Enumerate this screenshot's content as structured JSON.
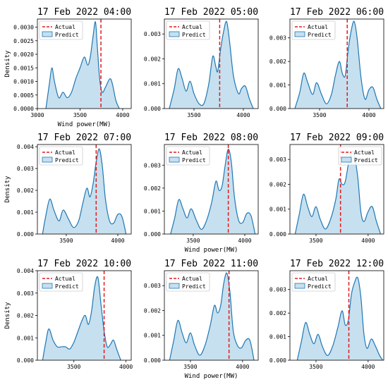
{
  "chart_data": [
    {
      "type": "area",
      "title": "17 Feb 2022 04:00",
      "xlabel": "Wind power(MW)",
      "ylabel": "Density",
      "xlim": [
        3000,
        4100
      ],
      "ylim": [
        0,
        0.0033
      ],
      "xticks": [
        3000,
        3500,
        4000
      ],
      "yticks": [
        0.0,
        0.0005,
        0.001,
        0.0015,
        0.002,
        0.0025,
        0.003
      ],
      "ytick_labels": [
        "0.0000",
        "0.0005",
        "0.0010",
        "0.0015",
        "0.0020",
        "0.0025",
        "0.0030"
      ],
      "actual": 3745,
      "series": [
        {
          "name": "Predict",
          "x": [
            3100,
            3140,
            3170,
            3200,
            3250,
            3300,
            3350,
            3400,
            3450,
            3500,
            3550,
            3590,
            3620,
            3650,
            3680,
            3700,
            3730,
            3760,
            3800,
            3850,
            3880,
            3920,
            3960
          ],
          "values": [
            0.0,
            0.0009,
            0.0015,
            0.001,
            0.0004,
            0.0006,
            0.0004,
            0.0006,
            0.0011,
            0.0015,
            0.0019,
            0.0016,
            0.0019,
            0.0026,
            0.0032,
            0.0024,
            0.0011,
            0.0006,
            0.0008,
            0.0011,
            0.0009,
            0.0003,
            0.0
          ]
        }
      ]
    },
    {
      "type": "area",
      "title": "17 Feb 2022 05:00",
      "xlabel": "",
      "ylabel": "",
      "xlim": [
        3200,
        4150
      ],
      "ylim": [
        0,
        0.0036
      ],
      "xticks": [
        3500,
        4000
      ],
      "yticks": [
        0.0,
        0.001,
        0.002,
        0.003
      ],
      "ytick_labels": [
        "0.000",
        "0.001",
        "0.002",
        "0.003"
      ],
      "actual": 3760,
      "series": [
        {
          "name": "Predict",
          "x": [
            3250,
            3300,
            3340,
            3380,
            3420,
            3460,
            3500,
            3550,
            3600,
            3650,
            3690,
            3720,
            3740,
            3770,
            3800,
            3830,
            3860,
            3900,
            3950,
            3980,
            4020,
            4060,
            4100
          ],
          "values": [
            0.0,
            0.0008,
            0.0016,
            0.0012,
            0.0007,
            0.0011,
            0.0006,
            0.0002,
            0.0002,
            0.001,
            0.0021,
            0.0017,
            0.0015,
            0.0024,
            0.0031,
            0.0035,
            0.0027,
            0.0013,
            0.0006,
            0.0008,
            0.0009,
            0.0004,
            0.0
          ]
        }
      ]
    },
    {
      "type": "area",
      "title": "17 Feb 2022 06:00",
      "xlabel": "",
      "ylabel": "",
      "xlim": [
        3200,
        4150
      ],
      "ylim": [
        0,
        0.0038
      ],
      "xticks": [
        3500,
        4000
      ],
      "yticks": [
        0.0,
        0.001,
        0.002,
        0.003
      ],
      "ytick_labels": [
        "0.000",
        "0.001",
        "0.002",
        "0.003"
      ],
      "actual": 3780,
      "series": [
        {
          "name": "Predict",
          "x": [
            3250,
            3300,
            3340,
            3380,
            3430,
            3470,
            3520,
            3570,
            3620,
            3660,
            3700,
            3730,
            3760,
            3790,
            3820,
            3850,
            3880,
            3920,
            3960,
            4000,
            4040,
            4080,
            4120
          ],
          "values": [
            0.0,
            0.0007,
            0.0015,
            0.0011,
            0.0006,
            0.0011,
            0.0006,
            0.0002,
            0.0006,
            0.0014,
            0.002,
            0.0015,
            0.0014,
            0.0025,
            0.0033,
            0.0037,
            0.003,
            0.0013,
            0.0004,
            0.0008,
            0.0009,
            0.0004,
            0.0
          ]
        }
      ]
    },
    {
      "type": "area",
      "title": "17 Feb 2022 07:00",
      "xlabel": "",
      "ylabel": "Density",
      "xlim": [
        3220,
        4130
      ],
      "ylim": [
        0,
        0.0041
      ],
      "xticks": [
        3500,
        4000
      ],
      "yticks": [
        0.0,
        0.001,
        0.002,
        0.003,
        0.004
      ],
      "ytick_labels": [
        "0.000",
        "0.001",
        "0.002",
        "0.003",
        "0.004"
      ],
      "actual": 3790,
      "series": [
        {
          "name": "Predict",
          "x": [
            3270,
            3300,
            3340,
            3380,
            3430,
            3470,
            3520,
            3570,
            3620,
            3660,
            3700,
            3730,
            3760,
            3790,
            3820,
            3850,
            3880,
            3920,
            3960,
            4000,
            4040,
            4080
          ],
          "values": [
            0.0,
            0.0008,
            0.0016,
            0.0011,
            0.0006,
            0.0011,
            0.0007,
            0.0003,
            0.0006,
            0.0014,
            0.0021,
            0.0017,
            0.0023,
            0.0033,
            0.0039,
            0.0031,
            0.0016,
            0.0006,
            0.0005,
            0.0009,
            0.0008,
            0.0
          ]
        }
      ]
    },
    {
      "type": "area",
      "title": "17 Feb 2022 08:00",
      "xlabel": "Wind power(MW)",
      "ylabel": "",
      "xlim": [
        3220,
        4130
      ],
      "ylim": [
        0,
        0.0039
      ],
      "xticks": [
        3500,
        4000
      ],
      "yticks": [
        0.0,
        0.001,
        0.002,
        0.003
      ],
      "ytick_labels": [
        "0.000",
        "0.001",
        "0.002",
        "0.003"
      ],
      "actual": 3840,
      "series": [
        {
          "name": "Predict",
          "x": [
            3280,
            3320,
            3360,
            3400,
            3440,
            3480,
            3530,
            3580,
            3630,
            3680,
            3720,
            3750,
            3780,
            3810,
            3840,
            3870,
            3900,
            3940,
            3980,
            4020,
            4060,
            4100
          ],
          "values": [
            0.0,
            0.0007,
            0.0015,
            0.0011,
            0.0007,
            0.0011,
            0.0006,
            0.0002,
            0.0006,
            0.0014,
            0.0023,
            0.0019,
            0.0021,
            0.003,
            0.0037,
            0.0031,
            0.0016,
            0.0006,
            0.0005,
            0.0009,
            0.0008,
            0.0
          ]
        }
      ]
    },
    {
      "type": "area",
      "title": "17 Feb 2022 09:00",
      "xlabel": "",
      "ylabel": "",
      "xlim": [
        3250,
        4150
      ],
      "ylim": [
        0,
        0.0036
      ],
      "xticks": [
        3500,
        4000
      ],
      "yticks": [
        0.0,
        0.001,
        0.002,
        0.003
      ],
      "ytick_labels": [
        "0.000",
        "0.001",
        "0.002",
        "0.003"
      ],
      "actual": 3735,
      "series": [
        {
          "name": "Predict",
          "x": [
            3300,
            3340,
            3380,
            3420,
            3460,
            3500,
            3540,
            3590,
            3640,
            3690,
            3720,
            3750,
            3780,
            3820,
            3860,
            3900,
            3930,
            3960,
            4000,
            4040,
            4080,
            4120
          ],
          "values": [
            0.0,
            0.0008,
            0.0016,
            0.0011,
            0.0007,
            0.0011,
            0.0006,
            0.0002,
            0.0006,
            0.0014,
            0.0022,
            0.002,
            0.0021,
            0.003,
            0.0033,
            0.0023,
            0.0009,
            0.0005,
            0.0009,
            0.0011,
            0.0005,
            0.0
          ]
        }
      ]
    },
    {
      "type": "area",
      "title": "17 Feb 2022 10:00",
      "xlabel": "",
      "ylabel": "Density",
      "xlim": [
        3150,
        4050
      ],
      "ylim": [
        0,
        0.004
      ],
      "xticks": [
        3500,
        4000
      ],
      "yticks": [
        0.0,
        0.001,
        0.002,
        0.003,
        0.004
      ],
      "ytick_labels": [
        "0.000",
        "0.001",
        "0.002",
        "0.003",
        "0.004"
      ],
      "actual": 3790,
      "series": [
        {
          "name": "Predict",
          "x": [
            3200,
            3230,
            3260,
            3300,
            3340,
            3380,
            3420,
            3460,
            3500,
            3540,
            3580,
            3610,
            3640,
            3670,
            3700,
            3730,
            3760,
            3790,
            3820,
            3850,
            3880,
            3910,
            3950
          ],
          "values": [
            0.0,
            0.0008,
            0.0014,
            0.0009,
            0.0006,
            0.0006,
            0.0006,
            0.0005,
            0.0008,
            0.0013,
            0.0018,
            0.002,
            0.0016,
            0.0022,
            0.0033,
            0.0037,
            0.0025,
            0.0013,
            0.0006,
            0.0007,
            0.0009,
            0.0005,
            0.0
          ]
        }
      ]
    },
    {
      "type": "area",
      "title": "17 Feb 2022 11:00",
      "xlabel": "Wind power(MW)",
      "ylabel": "",
      "xlim": [
        3250,
        4150
      ],
      "ylim": [
        0,
        0.0036
      ],
      "xticks": [
        3500,
        4000
      ],
      "yticks": [
        0.0,
        0.001,
        0.002,
        0.003
      ],
      "ytick_labels": [
        "0.000",
        "0.001",
        "0.002",
        "0.003"
      ],
      "actual": 3870,
      "series": [
        {
          "name": "Predict",
          "x": [
            3300,
            3340,
            3380,
            3420,
            3460,
            3500,
            3540,
            3590,
            3640,
            3690,
            3730,
            3760,
            3790,
            3820,
            3850,
            3880,
            3910,
            3950,
            3990,
            4030,
            4070,
            4110
          ],
          "values": [
            0.0,
            0.0008,
            0.0016,
            0.0011,
            0.0007,
            0.0011,
            0.0006,
            0.0002,
            0.0006,
            0.0014,
            0.0022,
            0.0019,
            0.0022,
            0.0031,
            0.0035,
            0.0027,
            0.0012,
            0.0006,
            0.0005,
            0.0008,
            0.0008,
            0.0
          ]
        }
      ]
    },
    {
      "type": "area",
      "title": "17 Feb 2022 12:00",
      "xlabel": "",
      "ylabel": "",
      "xlim": [
        3250,
        4150
      ],
      "ylim": [
        0,
        0.0038
      ],
      "xticks": [
        3500,
        4000
      ],
      "yticks": [
        0.0,
        0.001,
        0.002,
        0.003
      ],
      "ytick_labels": [
        "0.000",
        "0.001",
        "0.002",
        "0.003"
      ],
      "actual": 3815,
      "series": [
        {
          "name": "Predict",
          "x": [
            3320,
            3360,
            3400,
            3440,
            3480,
            3520,
            3560,
            3610,
            3660,
            3710,
            3750,
            3780,
            3810,
            3840,
            3870,
            3900,
            3930,
            3960,
            3990,
            4030,
            4070,
            4110,
            4140
          ],
          "values": [
            0.0,
            0.0008,
            0.0016,
            0.0011,
            0.0007,
            0.0011,
            0.0006,
            0.0002,
            0.0006,
            0.0014,
            0.0021,
            0.0015,
            0.0017,
            0.0028,
            0.0033,
            0.0035,
            0.0027,
            0.0011,
            0.0005,
            0.0009,
            0.0006,
            0.0002,
            0.0
          ]
        }
      ]
    }
  ],
  "legend": {
    "actual_label": "Actual",
    "predict_label": "Predict"
  },
  "colors": {
    "actual": "#e31a1c",
    "predict_line": "#1f77b4",
    "predict_fill": "#c6e0ef"
  }
}
